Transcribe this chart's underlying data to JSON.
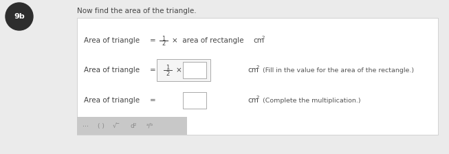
{
  "bg_color": "#ebebeb",
  "white_panel_color": "#ffffff",
  "badge_color": "#2d2d2d",
  "badge_text": "9b",
  "header_text": "Now find the area of the triangle.",
  "line1_left": "Area of triangle",
  "line1_eq": "=",
  "line1_mid": "×  area of rectangle",
  "line1_cm": "cm",
  "line2_left": "Area of triangle",
  "line2_eq": "=",
  "line2_x": "×",
  "line2_hint": "(Fill in the value for the area of the rectangle.)",
  "line2_cm": "cm",
  "line3_left": "Area of triangle",
  "line3_eq": "=",
  "line3_hint": "(Complete the multiplication.)",
  "line3_cm": "cm",
  "text_color": "#444444",
  "hint_color": "#555555",
  "panel_border": "#cccccc",
  "box_border": "#aaaaaa",
  "box_fill": "#f5f5f5",
  "ans_box_fill": "#ffffff",
  "toolbar_fill": "#c8c8c8",
  "toolbar_text": "#888888",
  "font_size": 7.5,
  "font_size_small": 6.0,
  "font_size_hint": 6.8
}
